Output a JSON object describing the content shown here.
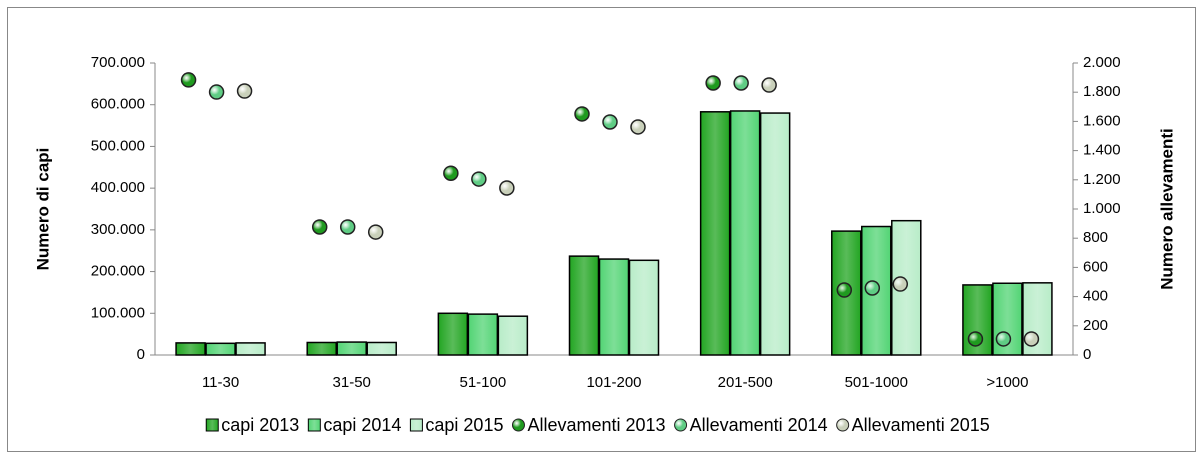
{
  "chart_data": {
    "type": "bar",
    "y_label": "Numero di capi",
    "y2_label": "Numero allevamenti",
    "categories": [
      "11-30",
      "31-50",
      "51-100",
      "101-200",
      "201-500",
      "501-1000",
      ">1000"
    ],
    "series": [
      {
        "name": "capi 2013",
        "type": "bar",
        "color": "#22a522",
        "values": [
          29000,
          30000,
          100000,
          237000,
          583000,
          297000,
          168000
        ]
      },
      {
        "name": "capi 2014",
        "type": "bar",
        "color": "#52d474",
        "values": [
          28000,
          31000,
          98000,
          230000,
          585000,
          308000,
          172000
        ]
      },
      {
        "name": "capi 2015",
        "type": "bar",
        "color": "#b8ecc8",
        "values": [
          29000,
          30000,
          93000,
          227000,
          580000,
          322000,
          173000
        ]
      },
      {
        "name": "Allevamenti 2013",
        "type": "scatter",
        "axis": "y2",
        "color": "#1f9a1f",
        "values": [
          1884,
          877,
          1245,
          1651,
          1863,
          445,
          110
        ]
      },
      {
        "name": "Allevamenti 2014",
        "type": "scatter",
        "axis": "y2",
        "color": "#5fcc84",
        "values": [
          1801,
          877,
          1205,
          1596,
          1863,
          459,
          110
        ]
      },
      {
        "name": "Allevamenti 2015",
        "type": "scatter",
        "axis": "y2",
        "color": "#c9d0ba",
        "values": [
          1808,
          842,
          1144,
          1562,
          1849,
          486,
          110
        ]
      }
    ],
    "ylim": [
      0,
      700000
    ],
    "yticks": [
      0,
      {
        "value": 100000,
        "label": "100.000"
      },
      {
        "value": 200000,
        "label": "200.000"
      },
      {
        "value": 300000,
        "label": "300.000"
      },
      {
        "value": 400000,
        "label": "400.000"
      },
      {
        "value": 500000,
        "label": "500.000"
      },
      {
        "value": 600000,
        "label": "600.000"
      },
      {
        "value": 700000,
        "label": "700.000"
      }
    ],
    "y2lim": [
      0,
      2000
    ],
    "y2ticks": [
      0,
      200,
      400,
      600,
      800,
      {
        "value": 1000,
        "label": "1.000"
      },
      {
        "value": 1200,
        "label": "1.200"
      },
      {
        "value": 1400,
        "label": "1.400"
      },
      {
        "value": 1600,
        "label": "1.600"
      },
      {
        "value": 1800,
        "label": "1.800"
      },
      {
        "value": 2000,
        "label": "2.000"
      }
    ],
    "grid": false,
    "legend": "bottom"
  }
}
